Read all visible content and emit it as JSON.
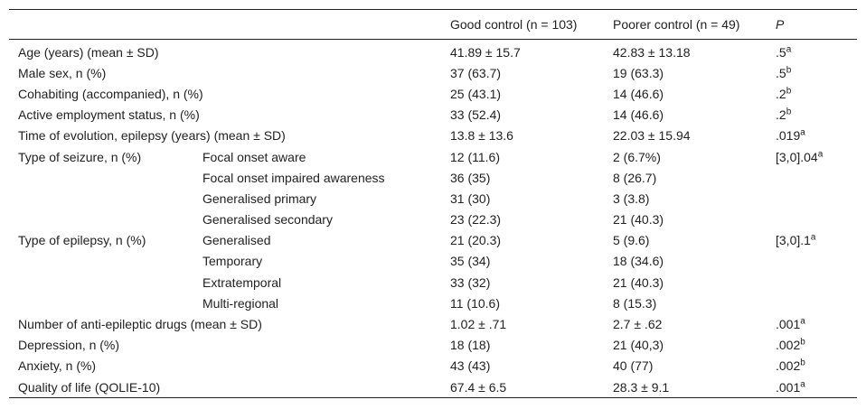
{
  "table": {
    "header": [
      "Good control (n = 103)",
      "Poorer control (n = 49)",
      "P"
    ],
    "rows": [
      [
        "Age (years) (mean ± SD)",
        null,
        "41.89 ± 15.7",
        "42.83 ± 13.18",
        {
          "text": ".5",
          "sup": "a"
        }
      ],
      [
        "Male sex, n (%)",
        null,
        "37 (63.7)",
        "19 (63.3)",
        {
          "text": ".5",
          "sup": "b"
        }
      ],
      [
        "Cohabiting (accompanied), n (%)",
        null,
        "25 (43.1)",
        "14 (46.6)",
        {
          "text": ".2",
          "sup": "b"
        }
      ],
      [
        "Active employment status, n (%)",
        null,
        "33 (52.4)",
        "14 (46.6)",
        {
          "text": ".2",
          "sup": "b"
        }
      ],
      [
        "Time of evolution, epilepsy (years) (mean ± SD)",
        null,
        "13.8 ± 13.6",
        "22.03 ± 15.94",
        {
          "text": ".019",
          "sup": "a"
        }
      ],
      [
        "Type of seizure, n (%)",
        "Focal onset aware",
        "12 (11.6)",
        "2 (6.7%)",
        {
          "text": "[3,0].04",
          "sup": "a"
        }
      ],
      [
        null,
        "Focal onset impaired awareness",
        "36 (35)",
        "8 (26.7)",
        null
      ],
      [
        null,
        "Generalised primary",
        "31 (30)",
        "3 (3.8)",
        null
      ],
      [
        null,
        "Generalised secondary",
        "23 (22.3)",
        "21 (40.3)",
        null
      ],
      [
        "Type of epilepsy, n (%)",
        "Generalised",
        "21 (20.3)",
        "5 (9.6)",
        {
          "text": "[3,0].1",
          "sup": "a"
        }
      ],
      [
        null,
        "Temporary",
        "35 (34)",
        "18 (34.6)",
        null
      ],
      [
        null,
        "Extratemporal",
        "33 (32)",
        "21 (40.3)",
        null
      ],
      [
        null,
        "Multi-regional",
        "11 (10.6)",
        "8 (15.3)",
        null
      ],
      [
        "Number of anti-epileptic drugs (mean ± SD)",
        null,
        "1.02 ± .71",
        "2.7 ± .62",
        {
          "text": ".001",
          "sup": "a"
        }
      ],
      [
        "Depression, n (%)",
        null,
        "18 (18)",
        "21 (40,3)",
        {
          "text": ".002",
          "sup": "b"
        }
      ],
      [
        "Anxiety, n (%)",
        null,
        "43 (43)",
        "40 (77)",
        {
          "text": ".002",
          "sup": "b"
        }
      ],
      [
        "Quality of life (QOLIE-10)",
        null,
        "67.4 ± 6.5",
        "28.3 ± 9.1",
        {
          "text": ".001",
          "sup": "a"
        }
      ]
    ]
  }
}
